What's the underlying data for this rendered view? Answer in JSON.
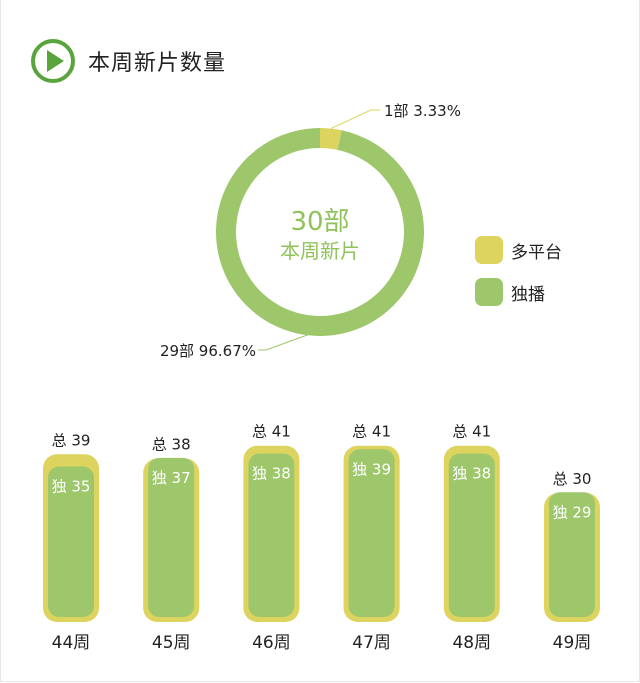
{
  "header": {
    "title": "本周新片数量",
    "icon": "play-icon"
  },
  "colors": {
    "multi": "#dcd45e",
    "exclusive": "#9ec76c",
    "accent": "#5aa43d",
    "center_text": "#8fc35a"
  },
  "center": {
    "count": "30部",
    "label": "本周新片"
  },
  "legend": [
    {
      "label": "多平台",
      "color": "#dcd45e"
    },
    {
      "label": "独播",
      "color": "#9ec76c"
    }
  ],
  "chart_data": [
    {
      "type": "pie",
      "slices": [
        {
          "name": "多平台",
          "value": 1,
          "percent": 3.33,
          "label": "1部  3.33%"
        },
        {
          "name": "独播",
          "value": 29,
          "percent": 96.67,
          "label": "29部  96.67%"
        }
      ]
    },
    {
      "type": "bar",
      "categories": [
        "44周",
        "45周",
        "46周",
        "47周",
        "48周",
        "49周"
      ],
      "series": [
        {
          "name": "总",
          "values": [
            39,
            38,
            41,
            41,
            41,
            30
          ]
        },
        {
          "name": "独",
          "values": [
            35,
            37,
            38,
            39,
            38,
            29
          ]
        }
      ]
    }
  ]
}
